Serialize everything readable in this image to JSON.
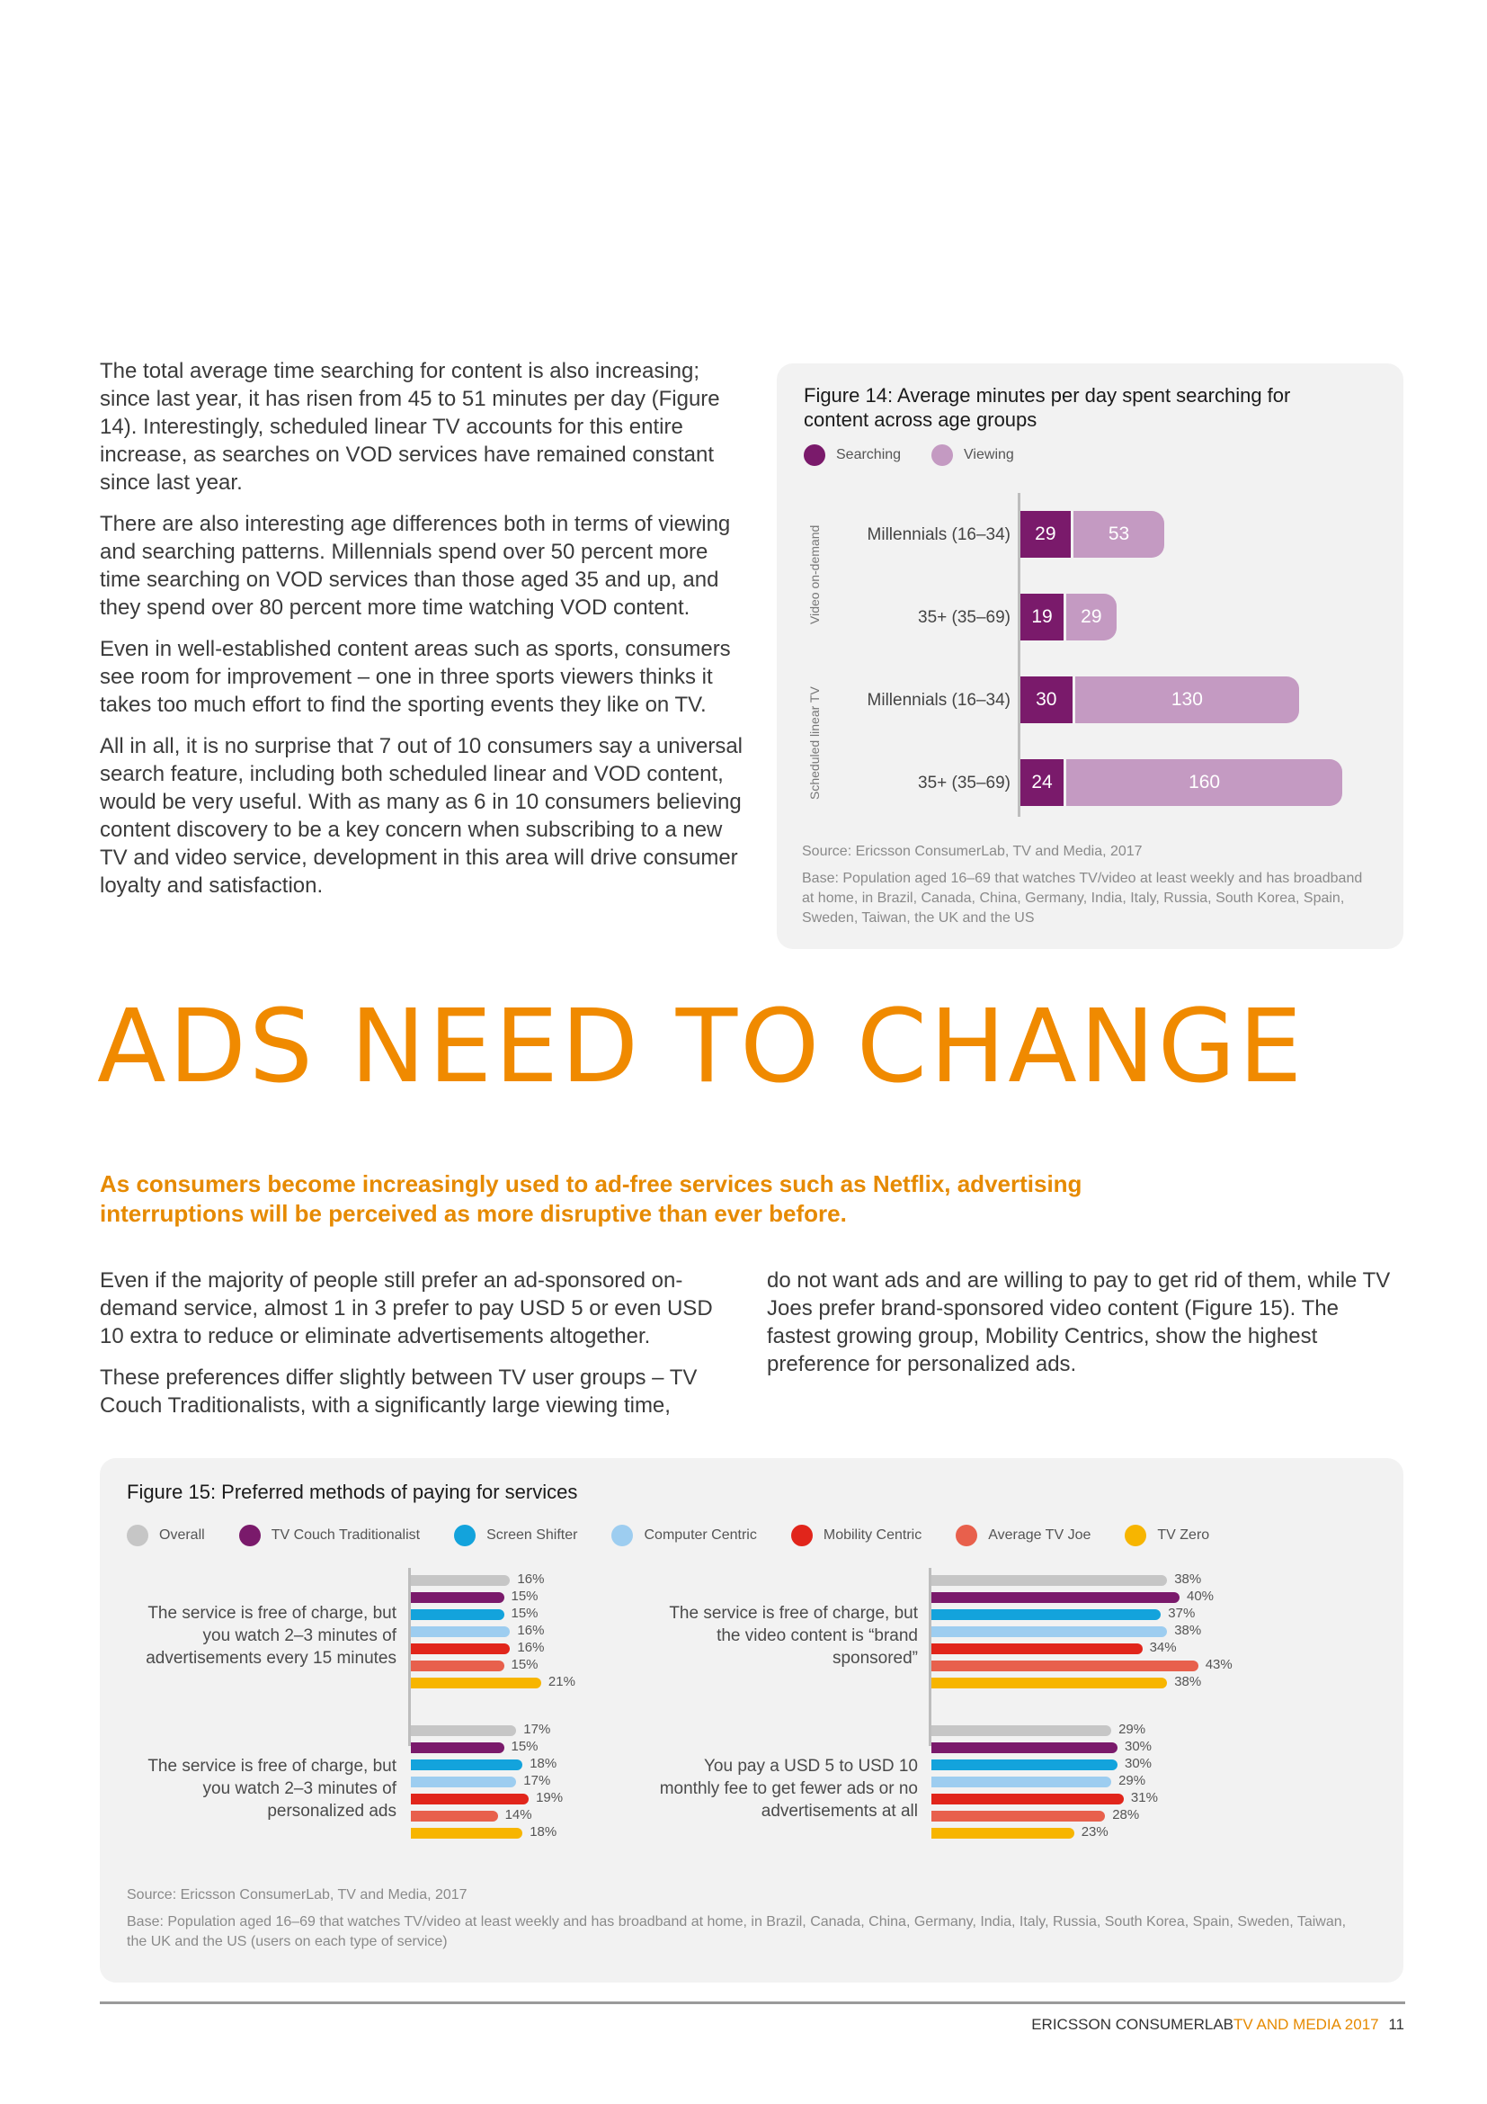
{
  "left_column": {
    "paragraphs": [
      "The total average time searching for content is also increasing; since last year, it has risen from 45 to 51 minutes per day (Figure 14). Interestingly, scheduled linear TV accounts for this entire increase, as searches on VOD services have remained constant since last year.",
      "There are also interesting age differences both in terms of viewing and searching patterns. Millennials spend over 50 percent more time searching on VOD services than those aged 35 and up, and they spend over 80 percent more time watching VOD content.",
      "Even in well-established content areas such as sports, consumers see room for improvement – one in three sports viewers thinks it takes too much effort to find the sporting events they like on TV.",
      "All in all, it is no surprise that 7 out of 10 consumers say a universal search feature, including both scheduled linear and VOD content, would be very useful. With as many as 6 in 10 consumers believing content discovery to be a key concern when subscribing to a new TV and video service, development in this area will drive consumer loyalty and satisfaction."
    ]
  },
  "figure14": {
    "title": "Figure 14: Average minutes per day spent searching for content across age groups",
    "legend": [
      {
        "label": "Searching",
        "color": "#7a1a6b"
      },
      {
        "label": "Viewing",
        "color": "#c49ac2"
      }
    ],
    "group_labels": [
      "Video on-demand",
      "Scheduled linear TV"
    ],
    "source": "Source: Ericsson ConsumerLab, TV and Media, 2017",
    "base": "Base: Population aged 16–69 that watches TV/video at least weekly and has broadband at home, in Brazil, Canada, China, Germany, India, Italy, Russia, South Korea, Spain, Sweden, Taiwan, the UK and the US"
  },
  "chart_data": [
    {
      "type": "bar",
      "orientation": "horizontal-stacked",
      "title": "Figure 14: Average minutes per day spent searching for content across age groups",
      "categories": [
        "Millennials (16–34)",
        "35+ (35–69)",
        "Millennials (16–34)",
        "35+ (35–69)"
      ],
      "groups": [
        "Video on-demand",
        "Video on-demand",
        "Scheduled linear TV",
        "Scheduled linear TV"
      ],
      "series": [
        {
          "name": "Searching",
          "values": [
            29,
            19,
            30,
            24
          ]
        },
        {
          "name": "Viewing",
          "values": [
            53,
            29,
            130,
            160
          ]
        }
      ]
    },
    {
      "type": "bar",
      "orientation": "horizontal-grouped",
      "title": "Figure 15: Preferred methods of paying for services",
      "categories": [
        "The service is free of charge, but you watch 2–3 minutes of advertisements every 15 minutes",
        "The service is free of charge, but the video content is “brand sponsored”",
        "The service is free of charge, but you watch 2–3 minutes of personalized ads",
        "You pay a USD 5 to USD 10 monthly fee to get fewer ads or no advertisements at all"
      ],
      "series": [
        {
          "name": "Overall",
          "color": "#c6c6c6",
          "values": [
            16,
            38,
            17,
            29
          ]
        },
        {
          "name": "TV Couch Traditionalist",
          "color": "#7a1a6b",
          "values": [
            15,
            40,
            15,
            30
          ]
        },
        {
          "name": "Screen Shifter",
          "color": "#13a3dc",
          "values": [
            15,
            37,
            18,
            30
          ]
        },
        {
          "name": "Computer Centric",
          "color": "#9dcdf0",
          "values": [
            16,
            38,
            17,
            29
          ]
        },
        {
          "name": "Mobility Centric",
          "color": "#e1251b",
          "values": [
            16,
            34,
            19,
            31
          ]
        },
        {
          "name": "Average TV Joe",
          "color": "#e8604c",
          "values": [
            15,
            43,
            14,
            28
          ]
        },
        {
          "name": "TV Zero",
          "color": "#f7b500",
          "values": [
            21,
            38,
            18,
            23
          ]
        }
      ],
      "unit": "%"
    }
  ],
  "section": {
    "headline": "ADS NEED TO CHANGE",
    "lead": "As consumers become increasingly used to ad-free services such as Netflix, advertising interruptions will be perceived as more disruptive than ever before.",
    "col1": [
      "Even if the majority of people still prefer an ad-sponsored on-demand service, almost 1 in 3 prefer to pay USD 5 or even USD 10 extra to reduce or eliminate advertisements altogether.",
      "These preferences differ slightly between TV user groups – TV Couch Traditionalists, with a significantly large viewing time,"
    ],
    "col2": [
      "do not want ads and are willing to pay to get rid of them, while TV Joes prefer brand-sponsored video content (Figure 15). The fastest growing group, Mobility Centrics, show the highest preference for personalized ads."
    ]
  },
  "figure15": {
    "title": "Figure 15: Preferred methods of paying for services",
    "source": "Source: Ericsson ConsumerLab, TV and Media, 2017",
    "base": "Base: Population aged 16–69 that watches TV/video at least weekly and has broadband at home, in Brazil, Canada, China, Germany, India, Italy, Russia, South Korea, Spain, Sweden, Taiwan, the UK and the US (users on each type of service)"
  },
  "footer": {
    "brand": "ERICSSON CONSUMERLAB",
    "report": "TV AND MEDIA 2017",
    "page": "11"
  }
}
